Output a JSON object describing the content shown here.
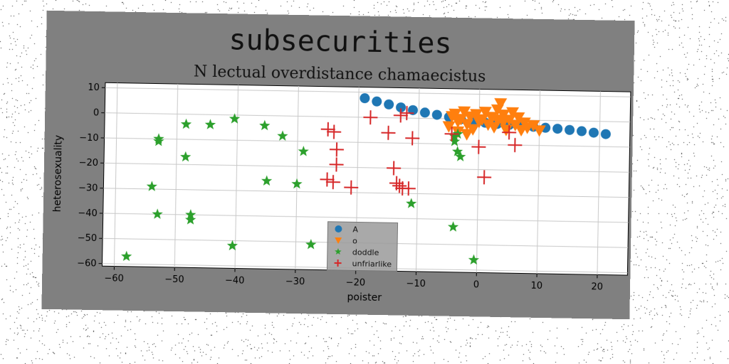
{
  "suptitle": "subsecurities",
  "colors": {
    "figure_bg": "#808080",
    "axes_bg": "#ffffff",
    "grid": "#c8c8c8",
    "A": "#1f77b4",
    "o": "#ff7f0e",
    "doddle": "#2ca02c",
    "unfriarlike": "#d62728"
  },
  "chart_data": {
    "type": "scatter",
    "title": "N lectual overdistance chamaecistus",
    "xlabel": "poister",
    "ylabel": "heterosexuality",
    "xlim": [
      -62,
      25
    ],
    "ylim": [
      -61,
      12
    ],
    "xticks": [
      -60,
      -50,
      -40,
      -30,
      -20,
      -10,
      0,
      10,
      20
    ],
    "yticks": [
      10,
      0,
      -10,
      -20,
      -30,
      -40,
      -50,
      -60
    ],
    "grid": true,
    "legend_position": "lower-center",
    "series": [
      {
        "name": "A",
        "marker": "circle",
        "x": [
          -19,
          -17,
          -15,
          -13,
          -11,
          -9,
          -7,
          -5,
          -3,
          -1,
          1,
          3,
          5,
          7,
          9,
          11,
          13,
          15,
          17,
          19,
          21
        ],
        "y": [
          7.6,
          6.4,
          5.3,
          4.2,
          3.2,
          2.3,
          1.5,
          0.7,
          -0.1,
          -0.8,
          -1.3,
          -1.7,
          -2.0,
          -2.3,
          -2.6,
          -2.9,
          -3.2,
          -3.6,
          -4.0,
          -4.5,
          -5.0
        ]
      },
      {
        "name": "o",
        "marker": "triangle-down",
        "x": [
          -5,
          -4,
          -3.5,
          -3,
          -2.5,
          -2,
          -1.5,
          -1,
          -0.5,
          0,
          0.5,
          1,
          1.5,
          2,
          2.5,
          3,
          3.5,
          4,
          4.5,
          5,
          5.5,
          6,
          6.5,
          7,
          7.5,
          8,
          9,
          10,
          -4.5,
          -3.5,
          4,
          3,
          -2
        ],
        "y": [
          -3,
          2,
          -1,
          0,
          3,
          -2,
          1,
          -4,
          2,
          -1,
          0,
          3,
          -2,
          1,
          -3,
          0,
          6.5,
          2,
          -4,
          0,
          3,
          -2,
          1,
          -4,
          -1,
          -3,
          -2,
          -4,
          1,
          -5,
          -1,
          4,
          -6
        ]
      },
      {
        "name": "doddle",
        "marker": "star",
        "x": [
          -58,
          -53,
          -53,
          -54,
          -53,
          -48.5,
          -48.5,
          -47.5,
          -47.5,
          -44.5,
          -40.5,
          -40.5,
          -35.5,
          -32.5,
          -35,
          -30,
          -29,
          -27.5,
          -11,
          -4,
          -4,
          -3.5,
          -3,
          -4,
          -3.5,
          -0.5
        ],
        "y": [
          -57,
          -10,
          -11,
          -29,
          -40,
          -4,
          -17,
          -40,
          -42,
          -4,
          -1.5,
          -52,
          -4,
          -8,
          -26,
          -27,
          -14,
          -51,
          -34,
          -7,
          -9,
          -13,
          -15,
          -43,
          -6,
          -56
        ]
      },
      {
        "name": "unfriarlike",
        "marker": "plus",
        "x": [
          -25,
          -24,
          -23.5,
          -23.5,
          -24,
          -25,
          -21,
          -18,
          -15,
          -13,
          -12,
          -11,
          -14,
          -13.5,
          -12.5,
          -13,
          -11.5,
          -4.5,
          1,
          0,
          5,
          6
        ],
        "y": [
          -5,
          -6,
          -13,
          -19,
          -26,
          -25,
          -28,
          0,
          -6,
          1,
          2,
          -8,
          -20,
          -26,
          -28,
          -27,
          -28,
          -6,
          -23,
          -11,
          -5,
          -10
        ]
      }
    ]
  }
}
